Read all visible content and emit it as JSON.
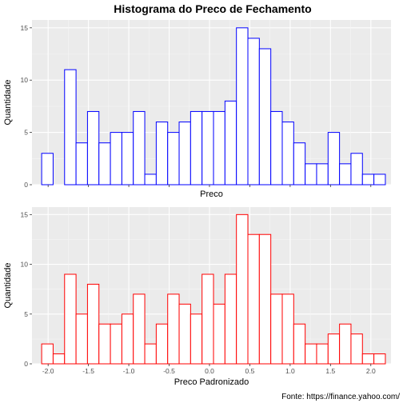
{
  "title": "Histograma do Preco de Fechamento",
  "caption": "Fonte: https://finance.yahoo.com/",
  "chart_data": [
    {
      "type": "bar",
      "subtype": "histogram",
      "xlabel": "Preco",
      "ylabel": "Quantidade",
      "x_tick_labels_shown": false,
      "y_ticks": [
        0,
        5,
        10,
        15
      ],
      "ylim": [
        0,
        15.75
      ],
      "grid": true,
      "bar_outline_color": "#0000ff",
      "bar_fill_color": "#ffffff",
      "panel_background": "#ebebeb",
      "values": [
        3,
        0,
        11,
        4,
        7,
        4,
        5,
        5,
        7,
        1,
        6,
        5,
        6,
        7,
        7,
        7,
        8,
        15,
        14,
        13,
        7,
        6,
        4,
        2,
        2,
        5,
        2,
        3,
        1,
        1
      ]
    },
    {
      "type": "bar",
      "subtype": "histogram",
      "xlabel": "Preco Padronizado",
      "ylabel": "Quantidade",
      "x_ticks": [
        -2.0,
        -1.5,
        -1.0,
        -0.5,
        0.0,
        0.5,
        1.0,
        1.5,
        2.0
      ],
      "x_tick_labels": [
        "-2.0",
        "-1.5",
        "-1.0",
        "-0.5",
        "0.0",
        "0.5",
        "1.0",
        "1.5",
        "2.0"
      ],
      "y_ticks": [
        0,
        5,
        10,
        15
      ],
      "ylim": [
        0,
        15.75
      ],
      "xlim": [
        -2.2,
        2.25
      ],
      "bin_start": -2.08,
      "bin_width": 0.142,
      "grid": true,
      "bar_outline_color": "#ff0000",
      "bar_fill_color": "#ffffff",
      "panel_background": "#ebebeb",
      "values": [
        2,
        1,
        9,
        5,
        8,
        4,
        4,
        5,
        7,
        2,
        4,
        7,
        6,
        5,
        9,
        6,
        9,
        15,
        13,
        13,
        7,
        7,
        4,
        2,
        2,
        3,
        4,
        3,
        1,
        1
      ]
    }
  ]
}
